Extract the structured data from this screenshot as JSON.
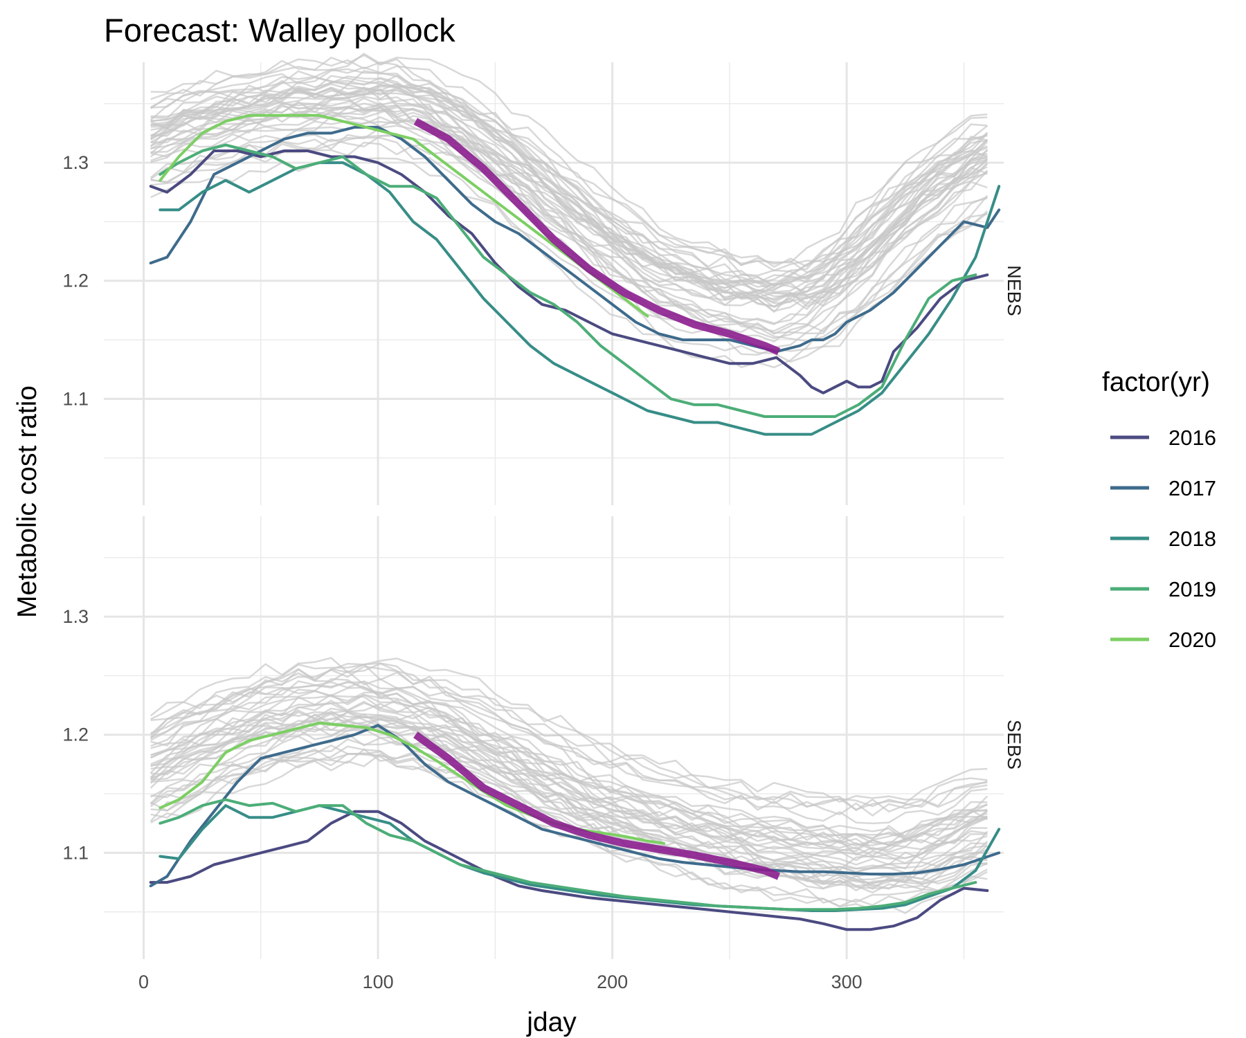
{
  "chart_data": {
    "type": "line",
    "title": "Forecast: Walley pollock",
    "xlabel": "jday",
    "ylabel": "Metabolic cost ratio",
    "xlim": [
      -17,
      367
    ],
    "ylim": [
      1.01,
      1.385
    ],
    "x_ticks": [
      0,
      100,
      200,
      300
    ],
    "y_ticks": [
      1.1,
      1.2,
      1.3
    ],
    "grid": true,
    "legend": {
      "title": "factor(yr)",
      "position": "right",
      "entries": [
        {
          "label": "2016",
          "color": "#4b4a81"
        },
        {
          "label": "2017",
          "color": "#3e6b8c"
        },
        {
          "label": "2018",
          "color": "#378d87"
        },
        {
          "label": "2019",
          "color": "#4cad78"
        },
        {
          "label": "2020",
          "color": "#7ccf63"
        }
      ]
    },
    "background_color": "#c8c8c8",
    "forecast_color": "#8b1e8f",
    "panels": [
      {
        "label": "NEBS",
        "background_profile": {
          "x": [
            0,
            30,
            60,
            90,
            110,
            130,
            160,
            190,
            220,
            250,
            280,
            300,
            330,
            360
          ],
          "y": [
            1.31,
            1.33,
            1.34,
            1.345,
            1.345,
            1.33,
            1.29,
            1.24,
            1.2,
            1.18,
            1.175,
            1.2,
            1.26,
            1.3
          ]
        },
        "background_lines": 40,
        "series": [
          {
            "name": "2016",
            "x": [
              3,
              10,
              20,
              30,
              40,
              50,
              60,
              70,
              80,
              90,
              100,
              110,
              120,
              130,
              140,
              150,
              160,
              170,
              180,
              190,
              200,
              210,
              220,
              230,
              240,
              250,
              260,
              270,
              280,
              285,
              290,
              295,
              300,
              305,
              310,
              315,
              320,
              330,
              340,
              350,
              360
            ],
            "y": [
              1.28,
              1.275,
              1.29,
              1.31,
              1.31,
              1.305,
              1.31,
              1.31,
              1.305,
              1.305,
              1.3,
              1.29,
              1.275,
              1.255,
              1.24,
              1.215,
              1.195,
              1.18,
              1.175,
              1.165,
              1.155,
              1.15,
              1.145,
              1.14,
              1.135,
              1.13,
              1.13,
              1.135,
              1.12,
              1.11,
              1.105,
              1.11,
              1.115,
              1.11,
              1.11,
              1.115,
              1.14,
              1.16,
              1.185,
              1.2,
              1.205
            ]
          },
          {
            "name": "2017",
            "x": [
              3,
              10,
              20,
              30,
              40,
              50,
              60,
              70,
              80,
              90,
              100,
              110,
              120,
              130,
              140,
              150,
              160,
              170,
              180,
              190,
              200,
              210,
              220,
              230,
              240,
              250,
              260,
              270,
              280,
              285,
              290,
              295,
              300,
              310,
              320,
              330,
              340,
              350,
              360,
              365
            ],
            "y": [
              1.215,
              1.22,
              1.25,
              1.29,
              1.3,
              1.31,
              1.32,
              1.325,
              1.325,
              1.33,
              1.33,
              1.32,
              1.305,
              1.285,
              1.265,
              1.25,
              1.24,
              1.225,
              1.21,
              1.195,
              1.18,
              1.165,
              1.155,
              1.15,
              1.15,
              1.15,
              1.145,
              1.14,
              1.145,
              1.15,
              1.15,
              1.155,
              1.165,
              1.175,
              1.19,
              1.21,
              1.23,
              1.25,
              1.245,
              1.26
            ]
          },
          {
            "name": "2018",
            "x": [
              7,
              15,
              25,
              35,
              45,
              55,
              65,
              75,
              85,
              95,
              105,
              115,
              125,
              135,
              145,
              155,
              165,
              175,
              185,
              195,
              205,
              215,
              225,
              235,
              245,
              255,
              265,
              275,
              285,
              295,
              305,
              315,
              325,
              335,
              345,
              355,
              365
            ],
            "y": [
              1.26,
              1.26,
              1.275,
              1.285,
              1.275,
              1.285,
              1.295,
              1.3,
              1.3,
              1.29,
              1.275,
              1.25,
              1.235,
              1.21,
              1.185,
              1.165,
              1.145,
              1.13,
              1.12,
              1.11,
              1.1,
              1.09,
              1.085,
              1.08,
              1.08,
              1.075,
              1.07,
              1.07,
              1.07,
              1.08,
              1.09,
              1.105,
              1.13,
              1.155,
              1.185,
              1.22,
              1.28
            ]
          },
          {
            "name": "2019",
            "x": [
              7,
              15,
              25,
              35,
              45,
              55,
              65,
              75,
              85,
              95,
              105,
              115,
              125,
              135,
              145,
              155,
              165,
              175,
              185,
              195,
              205,
              215,
              225,
              235,
              245,
              255,
              265,
              275,
              285,
              295,
              305,
              315,
              325,
              335,
              345,
              355
            ],
            "y": [
              1.29,
              1.3,
              1.31,
              1.315,
              1.31,
              1.305,
              1.295,
              1.3,
              1.305,
              1.29,
              1.28,
              1.28,
              1.27,
              1.245,
              1.22,
              1.205,
              1.19,
              1.18,
              1.165,
              1.145,
              1.13,
              1.115,
              1.1,
              1.095,
              1.095,
              1.09,
              1.085,
              1.085,
              1.085,
              1.085,
              1.095,
              1.11,
              1.15,
              1.185,
              1.2,
              1.205
            ]
          },
          {
            "name": "2020",
            "x": [
              7,
              15,
              25,
              35,
              45,
              55,
              65,
              75,
              85,
              95,
              105,
              115,
              125,
              135,
              145,
              155,
              165,
              175,
              185,
              195,
              205,
              215
            ],
            "y": [
              1.285,
              1.305,
              1.325,
              1.335,
              1.34,
              1.34,
              1.34,
              1.34,
              1.335,
              1.33,
              1.325,
              1.32,
              1.305,
              1.29,
              1.275,
              1.26,
              1.245,
              1.23,
              1.215,
              1.2,
              1.185,
              1.17
            ]
          },
          {
            "name": "forecast",
            "x": [
              116,
              130,
              145,
              160,
              175,
              190,
              205,
              220,
              235,
              250,
              265,
              271
            ],
            "y": [
              1.335,
              1.32,
              1.295,
              1.265,
              1.235,
              1.21,
              1.19,
              1.175,
              1.163,
              1.155,
              1.145,
              1.14
            ]
          }
        ]
      },
      {
        "label": "SEBS",
        "background_profile": {
          "x": [
            0,
            30,
            60,
            90,
            110,
            130,
            160,
            190,
            220,
            250,
            280,
            300,
            330,
            360
          ],
          "y": [
            1.17,
            1.2,
            1.22,
            1.225,
            1.22,
            1.21,
            1.18,
            1.15,
            1.13,
            1.115,
            1.105,
            1.1,
            1.1,
            1.13
          ]
        },
        "background_lines": 40,
        "series": [
          {
            "name": "2016",
            "x": [
              3,
              10,
              20,
              30,
              40,
              50,
              60,
              70,
              80,
              90,
              100,
              110,
              120,
              130,
              140,
              150,
              160,
              170,
              180,
              190,
              200,
              210,
              220,
              230,
              240,
              250,
              260,
              270,
              280,
              290,
              300,
              310,
              320,
              330,
              340,
              350,
              360
            ],
            "y": [
              1.075,
              1.075,
              1.08,
              1.09,
              1.095,
              1.1,
              1.105,
              1.11,
              1.125,
              1.135,
              1.135,
              1.125,
              1.11,
              1.1,
              1.09,
              1.08,
              1.072,
              1.068,
              1.065,
              1.062,
              1.06,
              1.058,
              1.056,
              1.054,
              1.052,
              1.05,
              1.048,
              1.046,
              1.044,
              1.04,
              1.035,
              1.035,
              1.038,
              1.045,
              1.06,
              1.07,
              1.068
            ]
          },
          {
            "name": "2017",
            "x": [
              3,
              10,
              20,
              30,
              40,
              50,
              60,
              70,
              80,
              90,
              100,
              110,
              120,
              130,
              140,
              150,
              160,
              170,
              180,
              190,
              200,
              210,
              220,
              230,
              240,
              250,
              260,
              270,
              280,
              290,
              300,
              310,
              320,
              330,
              340,
              350,
              365
            ],
            "y": [
              1.072,
              1.08,
              1.11,
              1.135,
              1.16,
              1.18,
              1.185,
              1.19,
              1.195,
              1.2,
              1.208,
              1.195,
              1.175,
              1.16,
              1.15,
              1.14,
              1.13,
              1.12,
              1.115,
              1.11,
              1.105,
              1.1,
              1.095,
              1.092,
              1.09,
              1.088,
              1.086,
              1.085,
              1.084,
              1.084,
              1.083,
              1.082,
              1.082,
              1.083,
              1.086,
              1.09,
              1.1
            ]
          },
          {
            "name": "2018",
            "x": [
              7,
              15,
              25,
              35,
              45,
              55,
              65,
              75,
              85,
              95,
              105,
              115,
              125,
              135,
              145,
              155,
              165,
              175,
              185,
              195,
              205,
              215,
              225,
              235,
              245,
              255,
              265,
              275,
              285,
              295,
              305,
              315,
              325,
              335,
              345,
              355,
              365
            ],
            "y": [
              1.097,
              1.095,
              1.12,
              1.14,
              1.13,
              1.13,
              1.135,
              1.14,
              1.135,
              1.13,
              1.125,
              1.11,
              1.1,
              1.09,
              1.083,
              1.078,
              1.073,
              1.07,
              1.067,
              1.064,
              1.062,
              1.06,
              1.058,
              1.056,
              1.055,
              1.054,
              1.053,
              1.052,
              1.051,
              1.051,
              1.052,
              1.053,
              1.056,
              1.063,
              1.07,
              1.085,
              1.12
            ]
          },
          {
            "name": "2019",
            "x": [
              7,
              15,
              25,
              35,
              45,
              55,
              65,
              75,
              85,
              95,
              105,
              115,
              125,
              135,
              145,
              155,
              165,
              175,
              185,
              195,
              205,
              215,
              225,
              235,
              245,
              255,
              265,
              275,
              285,
              295,
              305,
              315,
              325,
              335,
              345,
              355
            ],
            "y": [
              1.125,
              1.13,
              1.14,
              1.145,
              1.14,
              1.142,
              1.135,
              1.14,
              1.14,
              1.125,
              1.115,
              1.11,
              1.1,
              1.09,
              1.085,
              1.08,
              1.075,
              1.072,
              1.069,
              1.066,
              1.063,
              1.061,
              1.059,
              1.057,
              1.055,
              1.054,
              1.053,
              1.052,
              1.052,
              1.052,
              1.053,
              1.055,
              1.058,
              1.065,
              1.07,
              1.075
            ]
          },
          {
            "name": "2020",
            "x": [
              7,
              15,
              25,
              35,
              45,
              55,
              65,
              75,
              85,
              95,
              105,
              115,
              125,
              135,
              145,
              155,
              165,
              175,
              185,
              195,
              205,
              215,
              222
            ],
            "y": [
              1.138,
              1.145,
              1.16,
              1.185,
              1.195,
              1.2,
              1.205,
              1.21,
              1.208,
              1.206,
              1.2,
              1.19,
              1.178,
              1.165,
              1.152,
              1.14,
              1.132,
              1.125,
              1.12,
              1.117,
              1.114,
              1.11,
              1.108
            ]
          },
          {
            "name": "forecast",
            "x": [
              116,
              130,
              145,
              160,
              175,
              190,
              205,
              220,
              235,
              250,
              265,
              271
            ],
            "y": [
              1.2,
              1.18,
              1.155,
              1.14,
              1.125,
              1.115,
              1.108,
              1.103,
              1.098,
              1.092,
              1.085,
              1.08
            ]
          }
        ]
      }
    ]
  }
}
